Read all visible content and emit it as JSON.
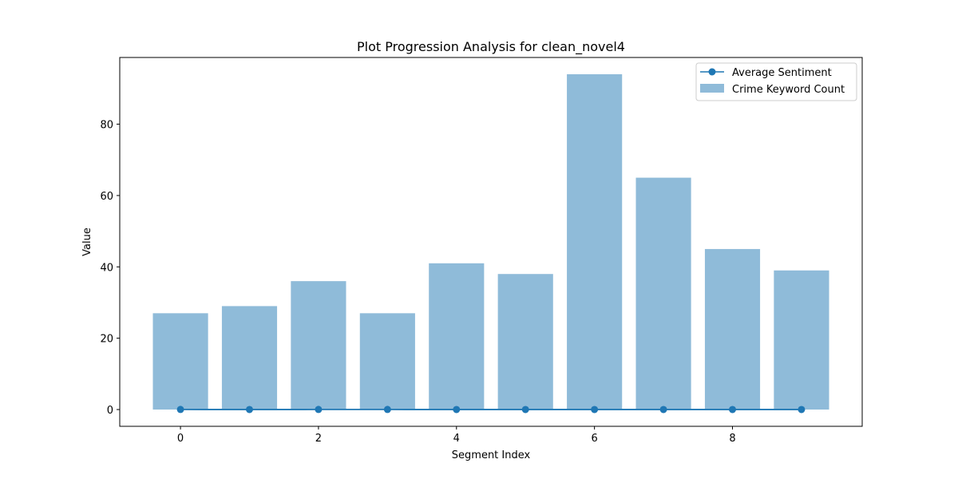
{
  "chart_data": {
    "type": "bar",
    "title": "Plot Progression Analysis for clean_novel4",
    "xlabel": "Segment Index",
    "ylabel": "Value",
    "x": [
      0,
      1,
      2,
      3,
      4,
      5,
      6,
      7,
      8,
      9
    ],
    "xlim": [
      -0.88,
      9.88
    ],
    "ylim": [
      -4.7,
      98.7
    ],
    "xticks": [
      0,
      2,
      4,
      6,
      8
    ],
    "yticks": [
      0,
      20,
      40,
      60,
      80
    ],
    "grid": false,
    "legend_position": "top-right",
    "series": [
      {
        "name": "Average Sentiment",
        "kind": "line",
        "marker": "circle",
        "color": "#1f77b4",
        "values": [
          0.02,
          0.01,
          0.02,
          0.02,
          0.01,
          0.01,
          0.01,
          0.01,
          0.01,
          0.01
        ]
      },
      {
        "name": "Crime Keyword Count",
        "kind": "bar",
        "color": "#1f77b4",
        "opacity": 0.5,
        "values": [
          27,
          29,
          36,
          27,
          41,
          38,
          94,
          65,
          45,
          39
        ]
      }
    ]
  }
}
